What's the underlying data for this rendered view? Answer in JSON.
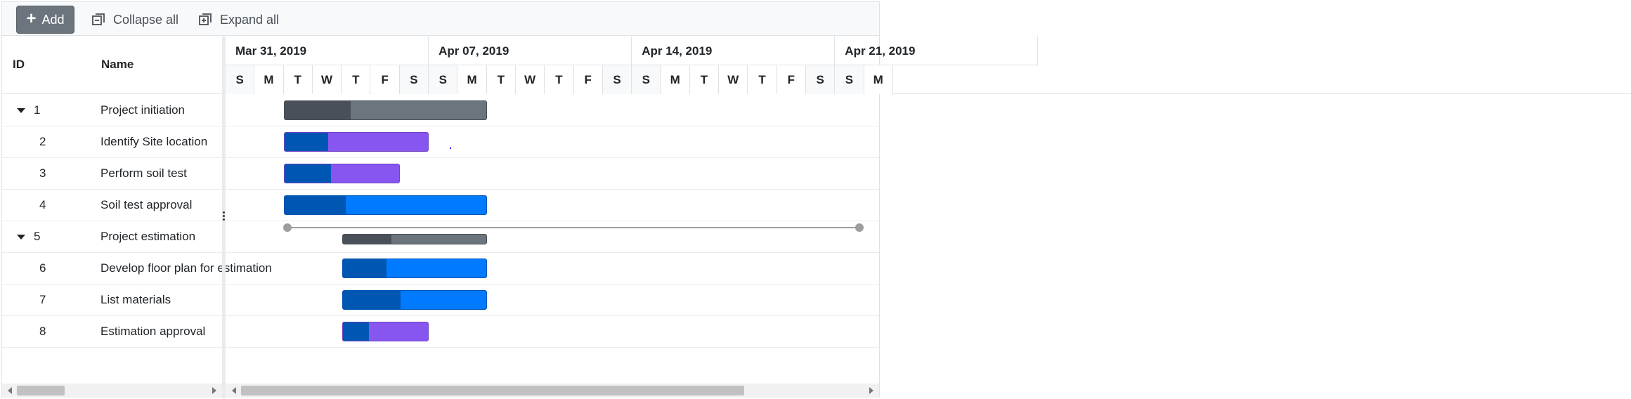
{
  "toolbar": {
    "add_label": "Add",
    "collapse_label": "Collapse all",
    "expand_label": "Expand all"
  },
  "grid": {
    "columns": {
      "id": "ID",
      "name": "Name"
    },
    "rows": [
      {
        "id": "1",
        "name": "Project initiation",
        "parent": true,
        "expanded": true
      },
      {
        "id": "2",
        "name": "Identify Site location",
        "parent": false
      },
      {
        "id": "3",
        "name": "Perform soil test",
        "parent": false
      },
      {
        "id": "4",
        "name": "Soil test approval",
        "parent": false
      },
      {
        "id": "5",
        "name": "Project estimation",
        "parent": true,
        "expanded": true
      },
      {
        "id": "6",
        "name": "Develop floor plan for estimation",
        "parent": false
      },
      {
        "id": "7",
        "name": "List materials",
        "parent": false
      },
      {
        "id": "8",
        "name": "Estimation approval",
        "parent": false
      }
    ]
  },
  "timeline": {
    "weeks": [
      "Mar 31, 2019",
      "Apr 07, 2019",
      "Apr 14, 2019",
      "Apr 21, 2019"
    ],
    "days": [
      "S",
      "M",
      "T",
      "W",
      "T",
      "F",
      "S",
      "S",
      "M",
      "T",
      "W",
      "T",
      "F",
      "S",
      "S",
      "M",
      "T",
      "W",
      "T",
      "F",
      "S",
      "S",
      "M"
    ]
  },
  "colors": {
    "summary": "#6c757d",
    "summary_progress": "#495057",
    "task_blue": "#007bff",
    "task_progress": "#0056b3",
    "task_purple": "#8756f0"
  }
}
